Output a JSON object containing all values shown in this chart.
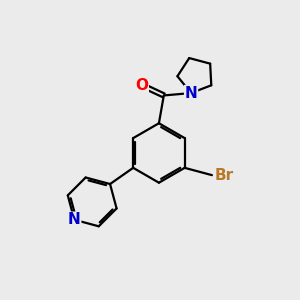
{
  "background_color": "#ebebeb",
  "bond_color": "#000000",
  "bond_width": 1.6,
  "atom_colors": {
    "O": "#ff0000",
    "N_pyrrolidine": "#0000cc",
    "N_pyridine": "#0000cc",
    "Br": "#b87828",
    "C": "#000000"
  },
  "font_size_atom": 11,
  "font_size_Br": 11
}
